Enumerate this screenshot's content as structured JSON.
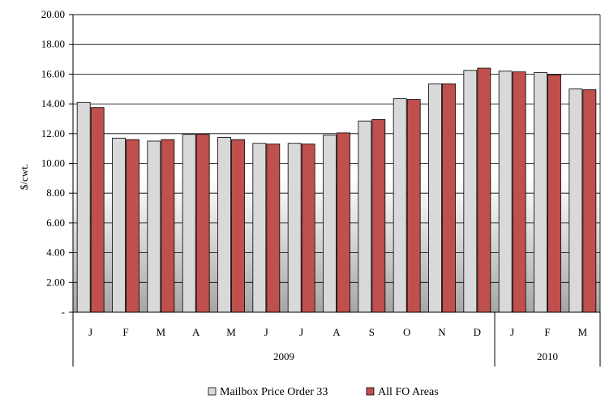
{
  "chart_data": {
    "type": "bar",
    "title": "",
    "ylabel": "$/cwt.",
    "xlabel": "",
    "ylim": [
      0,
      20
    ],
    "yticks": [
      {
        "value": 0,
        "label": "-"
      },
      {
        "value": 2,
        "label": "2.00"
      },
      {
        "value": 4,
        "label": "4.00"
      },
      {
        "value": 6,
        "label": "6.00"
      },
      {
        "value": 8,
        "label": "8.00"
      },
      {
        "value": 10,
        "label": "10.00"
      },
      {
        "value": 12,
        "label": "12.00"
      },
      {
        "value": 14,
        "label": "14.00"
      },
      {
        "value": 16,
        "label": "16.00"
      },
      {
        "value": 18,
        "label": "18.00"
      },
      {
        "value": 20,
        "label": "20.00"
      }
    ],
    "categories": [
      "J",
      "F",
      "M",
      "A",
      "M",
      "J",
      "J",
      "A",
      "S",
      "O",
      "N",
      "D",
      "J",
      "F",
      "M"
    ],
    "groups": [
      {
        "label": "2009",
        "start": 0,
        "count": 12
      },
      {
        "label": "2010",
        "start": 12,
        "count": 3
      }
    ],
    "grid": true,
    "legend_position": "bottom",
    "series": [
      {
        "name": "Mailbox Price Order 33",
        "color": "#d9d9d9",
        "values": [
          14.1,
          11.7,
          11.5,
          11.95,
          11.75,
          11.35,
          11.35,
          11.9,
          12.85,
          14.35,
          15.35,
          16.25,
          16.2,
          16.1,
          15.0
        ]
      },
      {
        "name": "All FO Areas",
        "color": "#c0504d",
        "values": [
          13.75,
          11.6,
          11.6,
          11.95,
          11.6,
          11.3,
          11.3,
          12.05,
          12.95,
          14.3,
          15.35,
          16.4,
          16.15,
          15.95,
          14.95
        ]
      }
    ]
  }
}
